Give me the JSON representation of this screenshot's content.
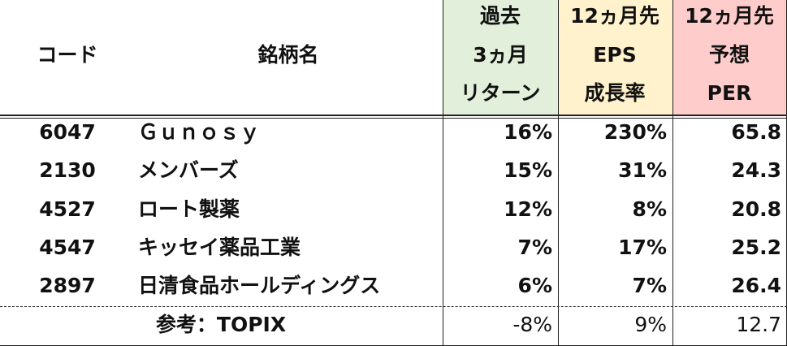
{
  "header": {
    "code": "コード",
    "name": "銘柄名",
    "columns": [
      [
        "過去",
        "3ヵ月",
        "リターン"
      ],
      [
        "12ヵ月先",
        "EPS",
        "成長率"
      ],
      [
        "12ヵ月先",
        "予想",
        "PER"
      ]
    ]
  },
  "table": {
    "rows": [
      [
        "6047",
        "Ｇｕｎｏｓｙ",
        "16%",
        "230%",
        "65.8"
      ],
      [
        "2130",
        "メンバーズ",
        "15%",
        "31%",
        "24.3"
      ],
      [
        "4527",
        "ロート製薬",
        "12%",
        "8%",
        "20.8"
      ],
      [
        "4547",
        "キッセイ薬品工業",
        "7%",
        "17%",
        "25.2"
      ],
      [
        "2897",
        "日清食品ホールディングス",
        "6%",
        "7%",
        "26.4"
      ]
    ]
  },
  "reference": {
    "label": "参考：TOPIX",
    "values": [
      "-8%",
      "9%",
      "12.7"
    ]
  }
}
